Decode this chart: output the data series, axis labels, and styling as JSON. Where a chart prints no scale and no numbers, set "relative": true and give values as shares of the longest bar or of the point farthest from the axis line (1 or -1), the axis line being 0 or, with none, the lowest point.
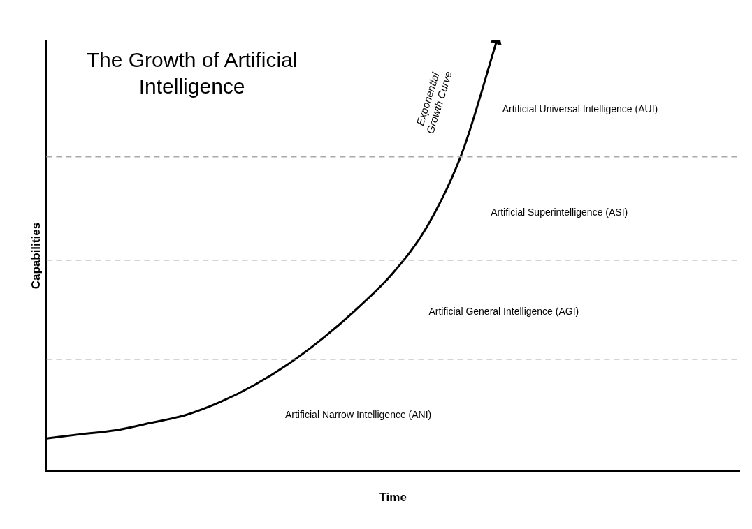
{
  "chart_data": {
    "type": "line",
    "title": "The Growth of Artificial Intelligence",
    "xlabel": "Time",
    "ylabel": "Capabilities",
    "relative": true,
    "grid": false,
    "legend": false,
    "marker": "none",
    "line_style": "solid",
    "categories": [
      null,
      null,
      null,
      null,
      null,
      null,
      null,
      null,
      null,
      null,
      null,
      null,
      null,
      null,
      null,
      null,
      null,
      null,
      null,
      null,
      null
    ],
    "series": [
      {
        "name": "Exponential Growth Curve",
        "color": "#000000",
        "values": [
          0.076,
          0.086,
          0.095,
          0.112,
          0.13,
          0.16,
          0.2,
          0.25,
          0.31,
          0.38,
          0.46,
          0.57,
          0.74,
          1,
          null,
          null,
          null,
          null,
          null,
          null,
          null
        ]
      }
    ],
    "ref_lines": [
      {
        "axis": "y",
        "value": 0.73,
        "color": "#aaaaaa",
        "line_style": "dashed"
      },
      {
        "axis": "y",
        "value": 0.49,
        "color": "#aaaaaa",
        "line_style": "dashed"
      },
      {
        "axis": "y",
        "value": 0.26,
        "color": "#aaaaaa",
        "line_style": "dashed"
      }
    ],
    "annotations": [
      "Artificial Universal Intelligence (AUI)",
      "Artificial Superintelligence (ASI)",
      "Artificial General Intelligence (AGI)",
      "Artificial Narrow Intelligence (ANI)"
    ]
  }
}
